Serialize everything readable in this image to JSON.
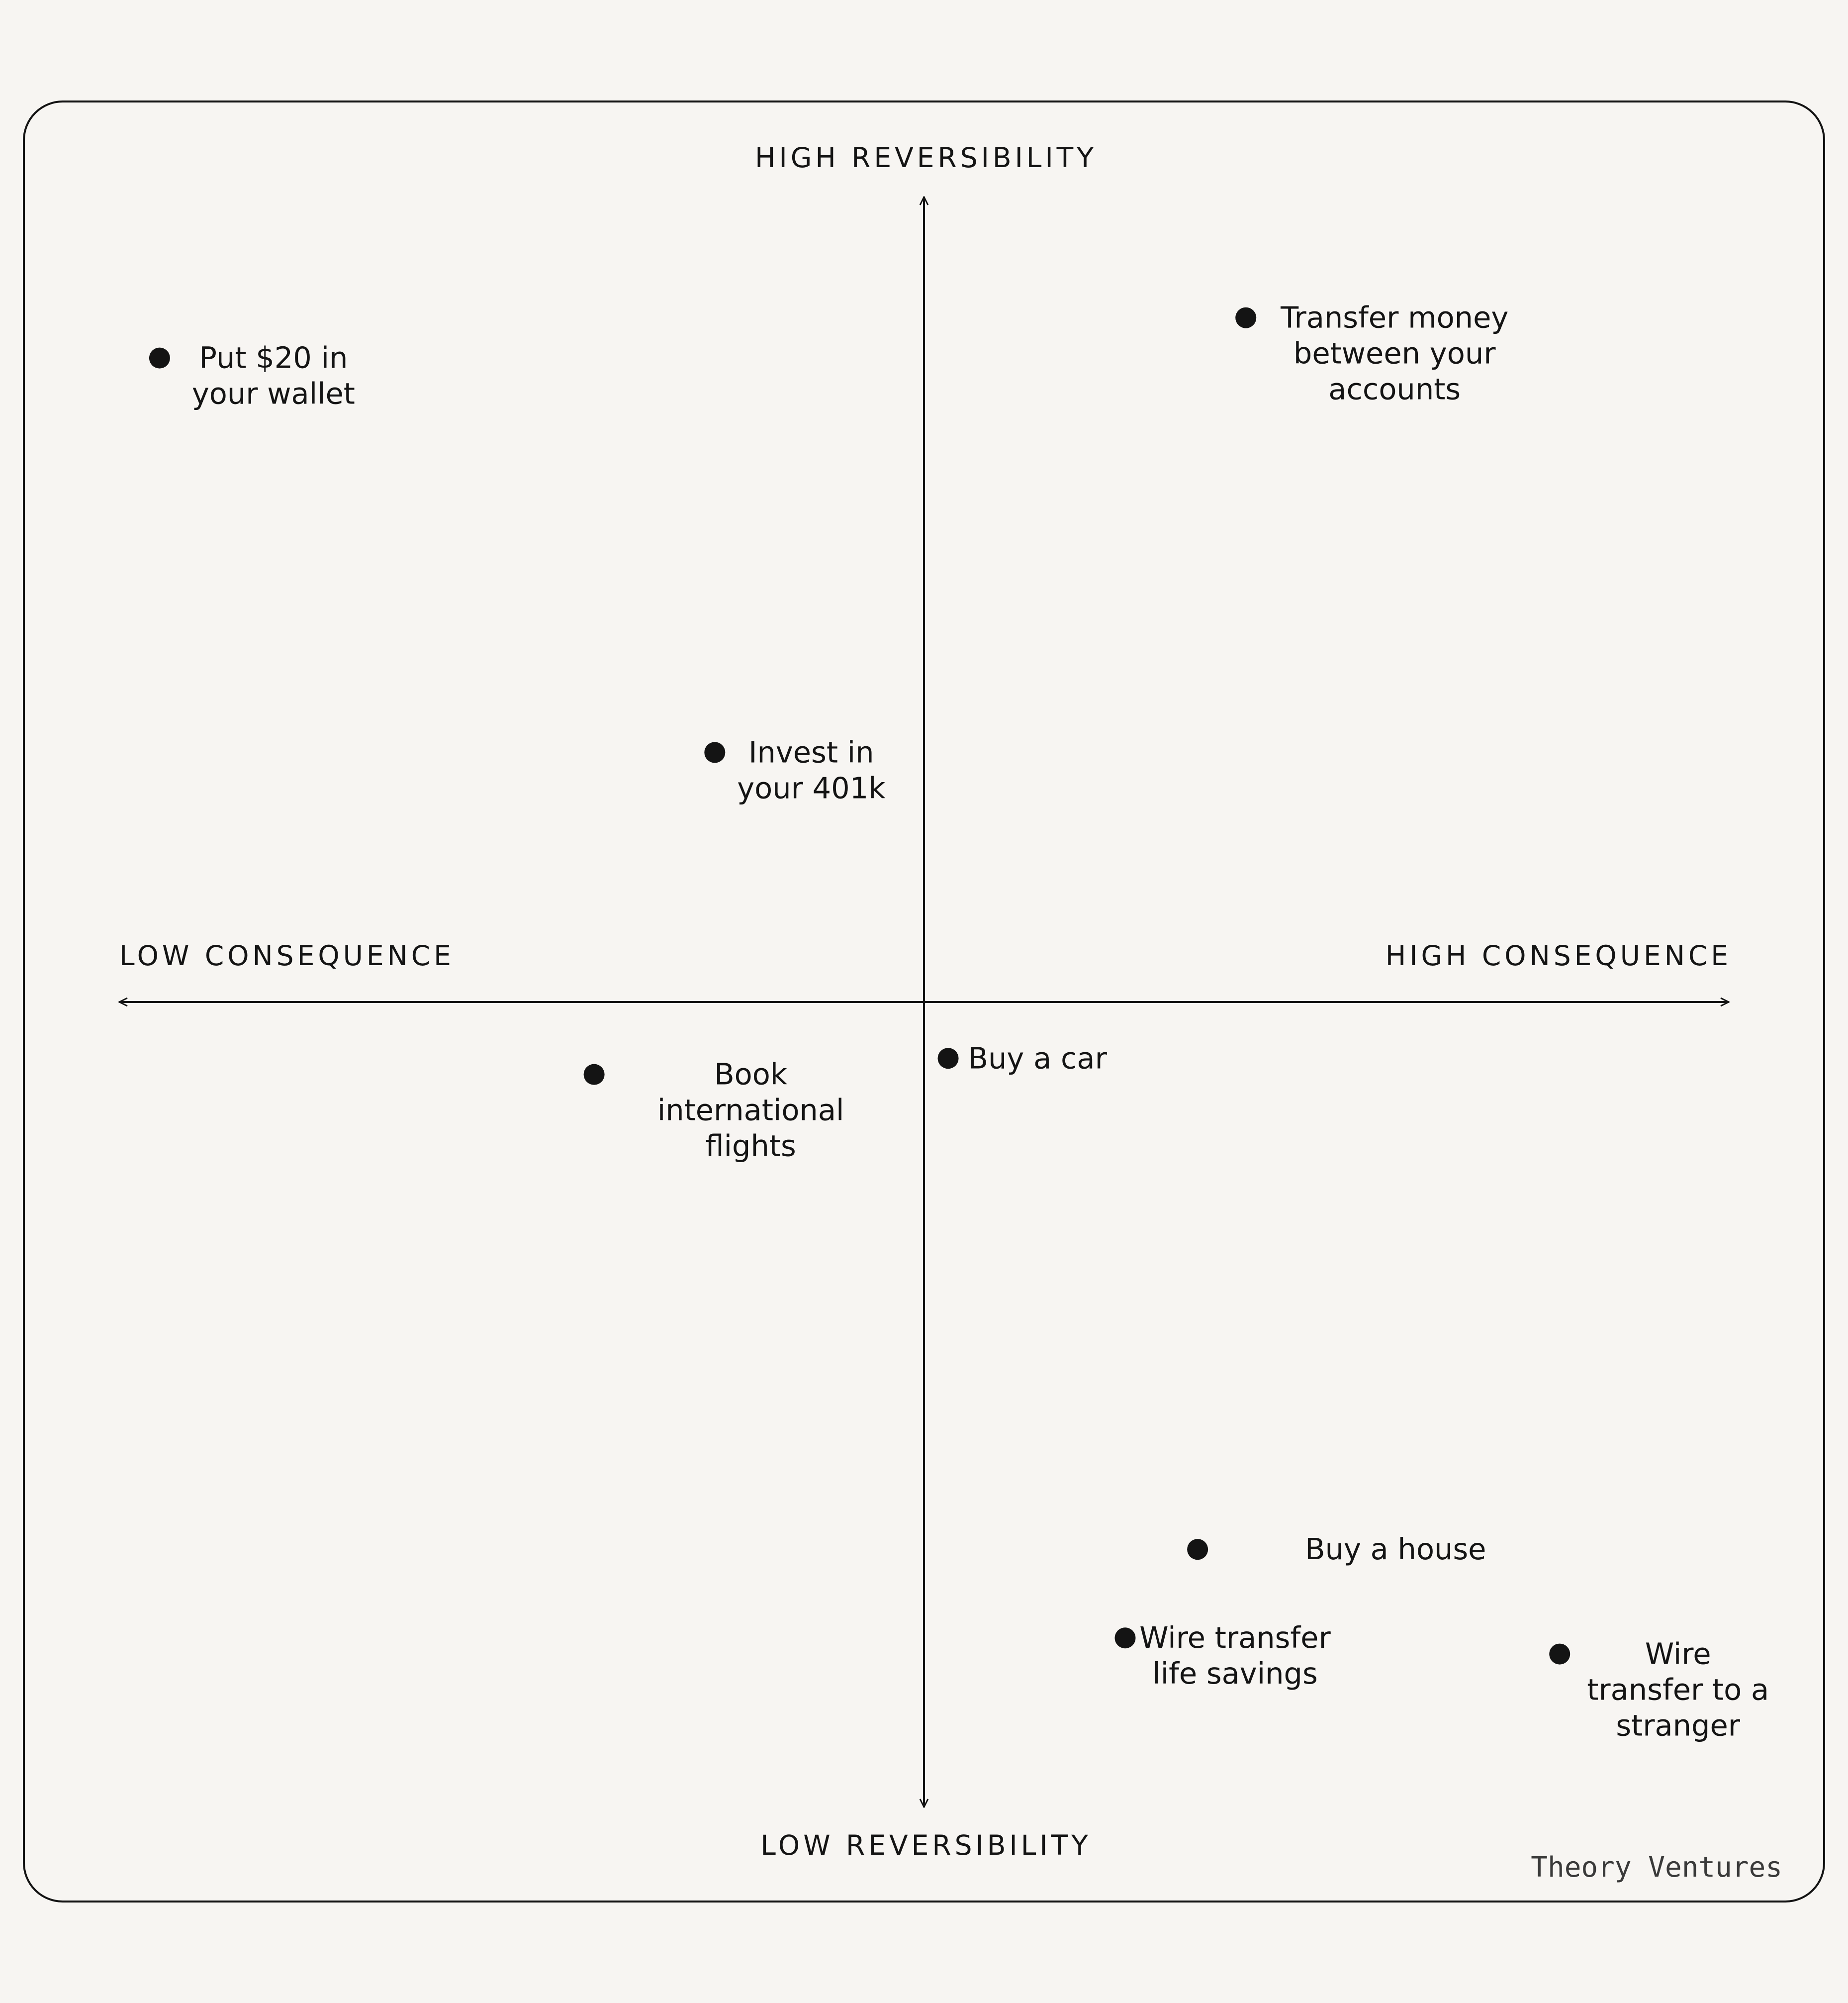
{
  "chart_data": {
    "type": "scatter",
    "x_axis": {
      "low_label": "LOW CONSEQUENCE",
      "high_label": "HIGH CONSEQUENCE",
      "range": [
        -1,
        1
      ]
    },
    "y_axis": {
      "low_label": "LOW REVERSIBILITY",
      "high_label": "HIGH REVERSIBILITY",
      "range": [
        -1,
        1
      ]
    },
    "grid": false,
    "points": [
      {
        "label": [
          "Put $20 in",
          "your wallet"
        ],
        "x": -0.95,
        "y": 0.8
      },
      {
        "label": [
          "Transfer money",
          "between your",
          "accounts"
        ],
        "x": 0.4,
        "y": 0.85
      },
      {
        "label": [
          "Invest in",
          "your 401k"
        ],
        "x": -0.26,
        "y": 0.31
      },
      {
        "label": [
          "Book",
          "international",
          "flights"
        ],
        "x": -0.41,
        "y": -0.09
      },
      {
        "label": [
          "Buy a car"
        ],
        "x": 0.03,
        "y": -0.07
      },
      {
        "label": [
          "Buy a house"
        ],
        "x": 0.34,
        "y": -0.68
      },
      {
        "label": [
          "Wire transfer",
          "life savings"
        ],
        "x": 0.25,
        "y": -0.79
      },
      {
        "label": [
          "Wire",
          "transfer to a",
          "stranger"
        ],
        "x": 0.79,
        "y": -0.81
      }
    ],
    "dot_color": "#141414"
  },
  "brand": "Theory Ventures"
}
